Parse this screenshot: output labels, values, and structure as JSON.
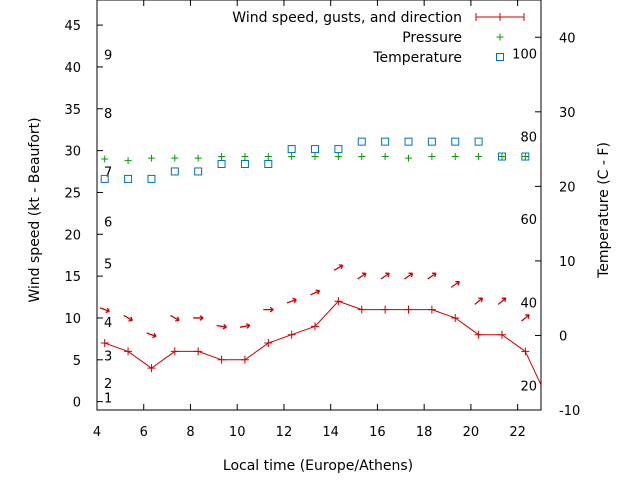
{
  "chart_data": {
    "type": "line",
    "xlabel": "Local time (Europe/Athens)",
    "ylabel_left": "Wind speed (kt - Beaufort)",
    "ylabel_right": "Temperature (C - F)",
    "xlim": [
      4,
      23
    ],
    "ylim_left": [
      -1,
      48
    ],
    "ylim_right": [
      -10,
      45
    ],
    "x_ticks": [
      4,
      6,
      8,
      10,
      12,
      14,
      16,
      18,
      20,
      22
    ],
    "y_left_ticks": [
      0,
      5,
      10,
      15,
      20,
      25,
      30,
      35,
      40,
      45
    ],
    "y_right_ticks": [
      -10,
      0,
      10,
      20,
      30,
      40
    ],
    "beaufort_labels": [
      {
        "label": "1",
        "kt": 0.5
      },
      {
        "label": "2",
        "kt": 2.2
      },
      {
        "label": "3",
        "kt": 5.5
      },
      {
        "label": "4",
        "kt": 9.5
      },
      {
        "label": "5",
        "kt": 16.5
      },
      {
        "label": "6",
        "kt": 21.5
      },
      {
        "label": "7",
        "kt": 27.5
      },
      {
        "label": "8",
        "kt": 34.5
      },
      {
        "label": "9",
        "kt": 41.5
      }
    ],
    "fahrenheit_labels": [
      {
        "label": "20",
        "c": -6.7
      },
      {
        "label": "40",
        "c": 4.4
      },
      {
        "label": "60",
        "c": 15.6
      },
      {
        "label": "80",
        "c": 26.7
      },
      {
        "label": "100",
        "c": 37.8
      }
    ],
    "legend": [
      {
        "label": "Wind speed, gusts, and direction",
        "color": "#cc0000",
        "marker": "line-plus"
      },
      {
        "label": "Pressure",
        "color": "#00a000",
        "marker": "plus"
      },
      {
        "label": "Temperature",
        "color": "#0070c0",
        "marker": "square"
      }
    ],
    "legend_placement": "top-right",
    "grid": false,
    "series": [
      {
        "name": "Wind speed, gusts, and direction",
        "color": "#cc0000",
        "x": [
          4.33,
          5.33,
          6.33,
          7.33,
          8.33,
          9.33,
          10.33,
          11.33,
          12.33,
          13.33,
          14.33,
          15.33,
          16.33,
          17.33,
          18.33,
          19.33,
          20.33,
          21.33,
          22.33,
          23
        ],
        "values": [
          7,
          6,
          4,
          6,
          6,
          5,
          5,
          7,
          8,
          9,
          12,
          11,
          11,
          11,
          11,
          10,
          8,
          8,
          6,
          2
        ]
      },
      {
        "name": "Wind direction arrows",
        "color": "#cc0000",
        "x": [
          4.33,
          5.33,
          6.33,
          7.33,
          8.33,
          9.33,
          10.33,
          11.33,
          12.33,
          13.33,
          14.33,
          15.33,
          16.33,
          17.33,
          18.33,
          19.33,
          20.33,
          21.33,
          22.33
        ],
        "values": [
          11,
          10,
          8,
          10,
          10,
          9,
          9,
          11,
          12,
          13,
          16,
          15,
          15,
          15,
          15,
          14,
          12,
          12,
          10
        ],
        "angle_deg": [
          20,
          30,
          20,
          30,
          0,
          10,
          -10,
          0,
          -20,
          -25,
          -30,
          -35,
          -35,
          -35,
          -35,
          -35,
          -40,
          -40,
          -40
        ]
      },
      {
        "name": "Pressure",
        "color": "#00a000",
        "x": [
          4.33,
          5.33,
          6.33,
          7.33,
          8.33,
          9.33,
          10.33,
          11.33,
          12.33,
          13.33,
          14.33,
          15.33,
          16.33,
          17.33,
          18.33,
          19.33,
          20.33,
          21.33,
          22.33
        ],
        "values": [
          29,
          28.8,
          29.1,
          29.1,
          29.1,
          29.3,
          29.3,
          29.3,
          29.3,
          29.3,
          29.3,
          29.3,
          29.3,
          29.1,
          29.3,
          29.3,
          29.3,
          29.3,
          29.3
        ]
      },
      {
        "name": "Temperature",
        "color": "#0070c0",
        "x": [
          4.33,
          5.33,
          6.33,
          7.33,
          8.33,
          9.33,
          10.33,
          11.33,
          12.33,
          13.33,
          14.33,
          15.33,
          16.33,
          17.33,
          18.33,
          19.33,
          20.33,
          21.33,
          22.33
        ],
        "values": [
          21,
          21,
          21,
          22,
          22,
          23,
          23,
          23,
          25,
          25,
          25,
          26,
          26,
          26,
          26,
          26,
          26,
          24,
          24
        ]
      }
    ]
  }
}
